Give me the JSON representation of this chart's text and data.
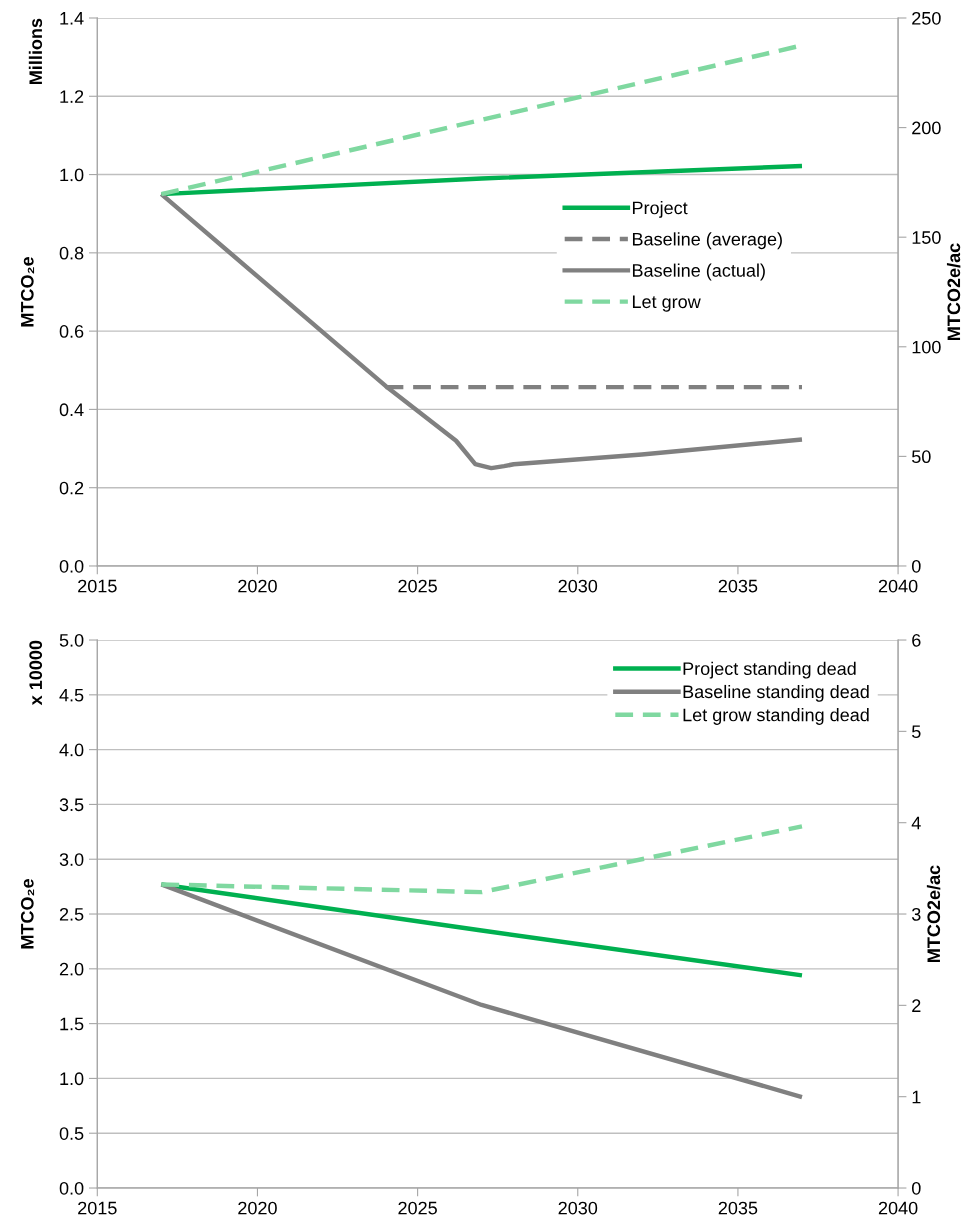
{
  "chart_data": [
    {
      "type": "line",
      "ylabel": "MTCO₂e",
      "y2label": "MTCO2e/ac",
      "annotations": [
        "Millions"
      ],
      "xlim": [
        2015,
        2040
      ],
      "xticks": [
        2015,
        2020,
        2025,
        2030,
        2035,
        2040
      ],
      "ylim": [
        0,
        1.4
      ],
      "yticks": [
        {
          "value": 0,
          "label": "0.0"
        },
        0.2,
        0.4,
        0.6,
        0.8,
        {
          "value": 1,
          "label": "1.0"
        },
        1.2,
        1.4
      ],
      "y2lim": [
        0,
        250
      ],
      "y2ticks": [
        0,
        50,
        100,
        150,
        200,
        250
      ],
      "grid": "y",
      "legend": "center right",
      "marker": "none",
      "series": [
        {
          "name": "Project",
          "color": "#00b050",
          "line_style": "solid",
          "x": [
            2017,
            2027,
            2037
          ],
          "values": [
            0.95,
            0.99,
            1.022
          ]
        },
        {
          "name": "Baseline (average)",
          "color": "#808080",
          "line_style": "dashed",
          "x": [
            2024,
            2037
          ],
          "values": [
            0.457,
            0.457
          ]
        },
        {
          "name": "Baseline (actual)",
          "color": "#808080",
          "line_style": "solid",
          "x": [
            2017,
            2024,
            2026.2,
            2026.8,
            2027.3,
            2027.7,
            2028,
            2032,
            2037
          ],
          "values": [
            0.95,
            0.46,
            0.32,
            0.26,
            0.25,
            0.255,
            0.26,
            0.285,
            0.323
          ]
        },
        {
          "name": "Let grow",
          "color": "#7fd8a0",
          "line_style": "dashed",
          "x": [
            2017,
            2027,
            2037
          ],
          "values": [
            0.95,
            1.14,
            1.33
          ]
        }
      ]
    },
    {
      "type": "line",
      "ylabel": "MTCO₂e",
      "y2label": "MTCO2e/ac",
      "annotations": [
        "x 10000"
      ],
      "xlim": [
        2015,
        2040
      ],
      "xticks": [
        2015,
        2020,
        2025,
        2030,
        2035,
        2040
      ],
      "ylim": [
        0,
        5
      ],
      "yticks": [
        {
          "value": 0,
          "label": "0.0"
        },
        0.5,
        {
          "value": 1,
          "label": "1.0"
        },
        1.5,
        {
          "value": 2,
          "label": "2.0"
        },
        2.5,
        {
          "value": 3,
          "label": "3.0"
        },
        3.5,
        {
          "value": 4,
          "label": "4.0"
        },
        4.5,
        {
          "value": 5,
          "label": "5.0"
        }
      ],
      "y2lim": [
        0,
        6
      ],
      "y2ticks": [
        0,
        1,
        2,
        3,
        4,
        5,
        6
      ],
      "grid": "y",
      "legend": "top right",
      "marker": "none",
      "series": [
        {
          "name": "Project standing dead",
          "color": "#00b050",
          "line_style": "solid",
          "x": [
            2017,
            2027,
            2037
          ],
          "values": [
            2.77,
            2.35,
            1.94
          ]
        },
        {
          "name": "Baseline standing dead",
          "color": "#808080",
          "line_style": "solid",
          "x": [
            2017,
            2027,
            2037
          ],
          "values": [
            2.77,
            1.67,
            0.83
          ]
        },
        {
          "name": "Let grow standing dead",
          "color": "#7fd8a0",
          "line_style": "dashed",
          "x": [
            2017,
            2027,
            2037
          ],
          "values": [
            2.77,
            2.7,
            3.3
          ]
        }
      ]
    }
  ]
}
